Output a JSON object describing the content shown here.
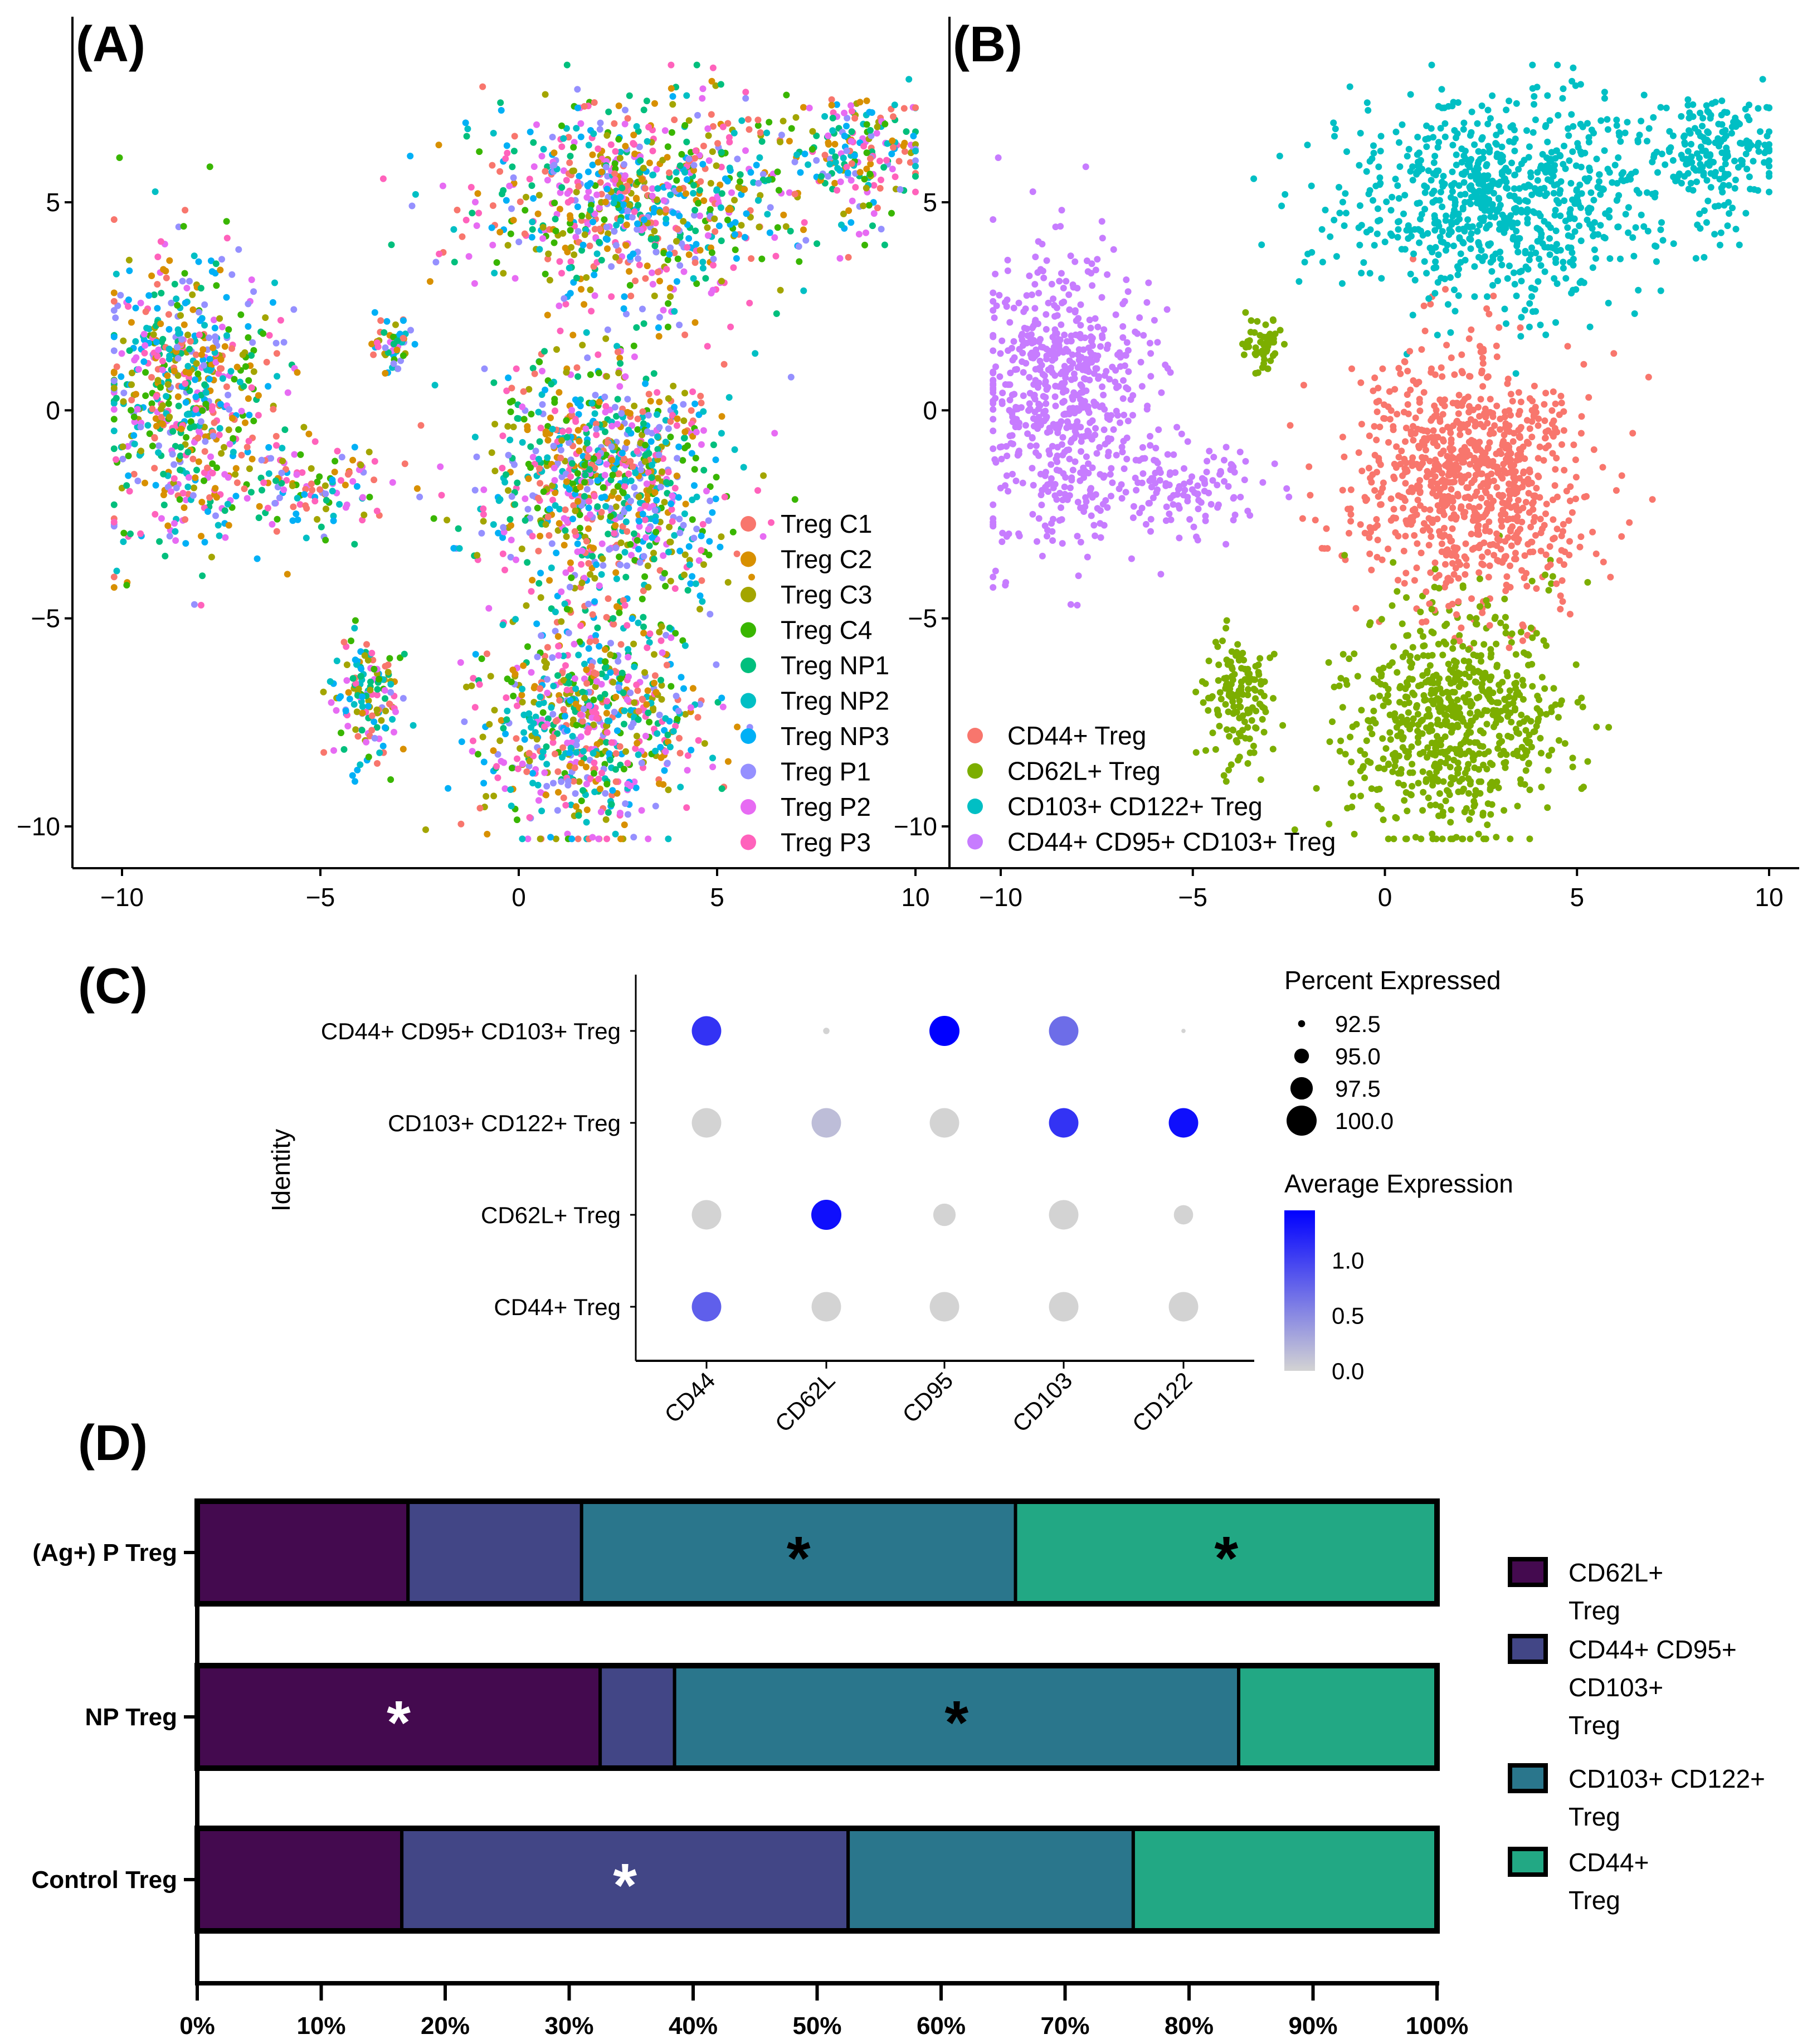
{
  "chart_data": [
    {
      "panel": "A",
      "type": "scatter",
      "title": "(A)",
      "xlim": [
        -11.2,
        11
      ],
      "ylim": [
        -11,
        8.5
      ],
      "xticks": [
        "−10",
        "−5",
        "0",
        "5",
        "10"
      ],
      "xtick_values": [
        -10,
        -5,
        0,
        5,
        10
      ],
      "yticks": [
        "5",
        "0",
        "−5",
        "−10"
      ],
      "ytick_values": [
        5,
        0,
        -5,
        -10
      ],
      "legend_position": "bottom-right",
      "legend": [
        {
          "label": "Treg C1",
          "color": "#F8766D"
        },
        {
          "label": "Treg C2",
          "color": "#D89000"
        },
        {
          "label": "Treg C3",
          "color": "#A3A500"
        },
        {
          "label": "Treg C4",
          "color": "#39B600"
        },
        {
          "label": "Treg NP1",
          "color": "#00BF7D"
        },
        {
          "label": "Treg NP2",
          "color": "#00BFC4"
        },
        {
          "label": "Treg NP3",
          "color": "#00B0F6"
        },
        {
          "label": "Treg P1",
          "color": "#9590FF"
        },
        {
          "label": "Treg P2",
          "color": "#E76BF3"
        },
        {
          "label": "Treg P3",
          "color": "#FF62BC"
        }
      ]
    },
    {
      "panel": "B",
      "type": "scatter",
      "title": "(B)",
      "xlim": [
        -11.2,
        11
      ],
      "ylim": [
        -11,
        8.5
      ],
      "xticks": [
        "−10",
        "−5",
        "0",
        "5",
        "10"
      ],
      "xtick_values": [
        -10,
        -5,
        0,
        5,
        10
      ],
      "yticks": [
        "5",
        "0",
        "−5",
        "−10"
      ],
      "ytick_values": [
        5,
        0,
        -5,
        -10
      ],
      "legend_position": "bottom-left",
      "legend": [
        {
          "label": "CD44+ Treg",
          "color": "#F8766D"
        },
        {
          "label": "CD62L+ Treg",
          "color": "#7CAE00"
        },
        {
          "label": "CD103+ CD122+ Treg",
          "color": "#00BFC4"
        },
        {
          "label": "CD44+ CD95+ CD103+ Treg",
          "color": "#C77CFF"
        }
      ],
      "clusters": [
        {
          "group": 0,
          "cx": 2.2,
          "cy": -1.6,
          "sx": 1.5,
          "sy": 1.5,
          "n": 900
        },
        {
          "group": 1,
          "cx": 1.8,
          "cy": -7.5,
          "sx": 1.4,
          "sy": 1.4,
          "n": 700
        },
        {
          "group": 1,
          "cx": -3.8,
          "cy": -6.8,
          "sx": 0.5,
          "sy": 0.8,
          "n": 150
        },
        {
          "group": 1,
          "cx": -3.2,
          "cy": 1.5,
          "sx": 0.3,
          "sy": 0.4,
          "n": 50
        },
        {
          "group": 2,
          "cx": 3.0,
          "cy": 5.0,
          "sx": 2.0,
          "sy": 1.2,
          "n": 800
        },
        {
          "group": 2,
          "cx": 8.6,
          "cy": 6.2,
          "sx": 0.8,
          "sy": 0.8,
          "n": 200
        },
        {
          "group": 3,
          "cx": -8.4,
          "cy": 0.3,
          "sx": 1.1,
          "sy": 1.7,
          "n": 650
        },
        {
          "group": 3,
          "cx": -5.0,
          "cy": -1.8,
          "sx": 0.9,
          "sy": 0.6,
          "n": 120
        }
      ]
    },
    {
      "panel": "C",
      "type": "dot",
      "title": "(C)",
      "ylabel": "Identity",
      "genes": [
        "CD44",
        "CD62L",
        "CD95",
        "CD103",
        "CD122"
      ],
      "identities": [
        "CD44+ CD95+ CD103+ Treg",
        "CD103+ CD122+ Treg",
        "CD62L+ Treg",
        "CD44+ Treg"
      ],
      "avg_expression": [
        [
          1.1,
          0.0,
          1.45,
          0.7,
          0.0
        ],
        [
          0.0,
          0.15,
          0.0,
          1.1,
          1.35
        ],
        [
          0.0,
          1.35,
          0.0,
          0.0,
          0.0
        ],
        [
          0.8,
          0.0,
          0.0,
          0.0,
          0.0
        ]
      ],
      "pct_expressed": [
        [
          99.8,
          92.3,
          100,
          99.8,
          91.6
        ],
        [
          99.8,
          99.8,
          99.8,
          99.8,
          99.8
        ],
        [
          99.8,
          100,
          97.5,
          99.8,
          96.5
        ],
        [
          99.8,
          99.8,
          99.8,
          99.8,
          99.8
        ]
      ],
      "size_legend_title": "Percent Expressed",
      "size_legend": [
        "92.5",
        "95.0",
        "97.5",
        "100.0"
      ],
      "size_legend_values": [
        92.5,
        95.0,
        97.5,
        100.0
      ],
      "color_legend_title": "Average Expression",
      "color_legend": [
        "1.0",
        "0.5",
        "0.0"
      ],
      "color_legend_values": [
        1.0,
        0.5,
        0.0
      ],
      "color_low": "#D3D3D3",
      "color_high": "#0000FF",
      "color_max": 1.45
    },
    {
      "panel": "D",
      "type": "bar",
      "title": "(D)",
      "orientation": "horizontal-stacked",
      "categories": [
        "(Ag+) P Treg",
        "NP Treg",
        "Control Treg"
      ],
      "series": [
        {
          "name": "CD62L+ Treg",
          "legend_lines": [
            "CD62L+",
            "Treg"
          ],
          "color": "#440A4F",
          "values": [
            17,
            32.5,
            16.5
          ]
        },
        {
          "name": "CD44+ CD95+ CD103+ Treg",
          "legend_lines": [
            "CD44+ CD95+",
            "CD103+",
            "Treg"
          ],
          "color": "#424686",
          "values": [
            14,
            6,
            36
          ]
        },
        {
          "name": "CD103+ CD122+ Treg",
          "legend_lines": [
            "CD103+ CD122+",
            "Treg"
          ],
          "color": "#2A768C",
          "values": [
            35,
            45.5,
            23
          ]
        },
        {
          "name": "CD44+ Treg",
          "legend_lines": [
            "CD44+",
            "Treg"
          ],
          "color": "#22A884",
          "values": [
            34,
            16,
            24.5
          ]
        }
      ],
      "significance": [
        {
          "category": 0,
          "series": 2,
          "mark": "*",
          "color": "#000000"
        },
        {
          "category": 0,
          "series": 3,
          "mark": "*",
          "color": "#000000"
        },
        {
          "category": 1,
          "series": 0,
          "mark": "*",
          "color": "#FFFFFF"
        },
        {
          "category": 1,
          "series": 2,
          "mark": "*",
          "color": "#000000"
        },
        {
          "category": 2,
          "series": 1,
          "mark": "*",
          "color": "#FFFFFF"
        }
      ],
      "xticks": [
        "0%",
        "10%",
        "20%",
        "30%",
        "40%",
        "50%",
        "60%",
        "70%",
        "80%",
        "90%",
        "100%"
      ],
      "xlim": [
        0,
        100
      ]
    }
  ]
}
